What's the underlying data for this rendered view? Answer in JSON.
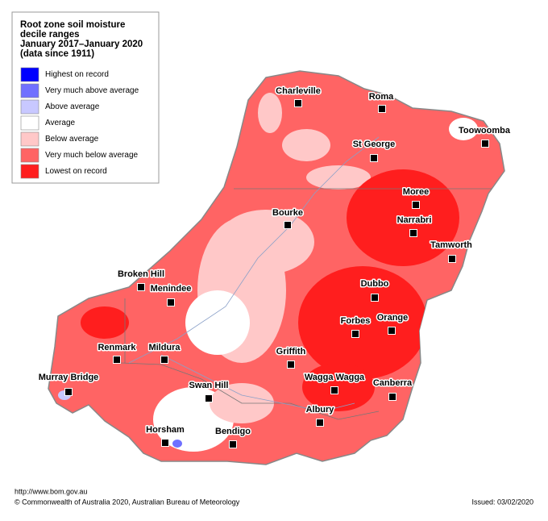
{
  "legend": {
    "title": [
      "Root zone soil moisture",
      "decile ranges",
      "January 2017–January 2020",
      "(data since 1911)"
    ],
    "items": [
      {
        "label": "Highest on record",
        "color": "#0000ff"
      },
      {
        "label": "Very much above average",
        "color": "#7070ff"
      },
      {
        "label": "Above average",
        "color": "#c8c8ff"
      },
      {
        "label": "Average",
        "color": "#ffffff"
      },
      {
        "label": "Below average",
        "color": "#ffc8c8"
      },
      {
        "label": "Very much below average",
        "color": "#ff6464"
      },
      {
        "label": "Lowest on record",
        "color": "#ff1e1e"
      }
    ]
  },
  "places": [
    "Charleville",
    "Roma",
    "Toowoomba",
    "St George",
    "Moree",
    "Bourke",
    "Narrabri",
    "Tamworth",
    "Broken Hill",
    "Menindee",
    "Dubbo",
    "Forbes",
    "Orange",
    "Renmark",
    "Mildura",
    "Griffith",
    "Wagga Wagga",
    "Swan Hill",
    "Canberra",
    "Murray Bridge",
    "Albury",
    "Horsham",
    "Bendigo"
  ],
  "footer": {
    "url": "http://www.bom.gov.au",
    "copyright": "© Commonwealth of Australia 2020, Australian Bureau of Meteorology",
    "issued": "Issued: 03/02/2020"
  }
}
